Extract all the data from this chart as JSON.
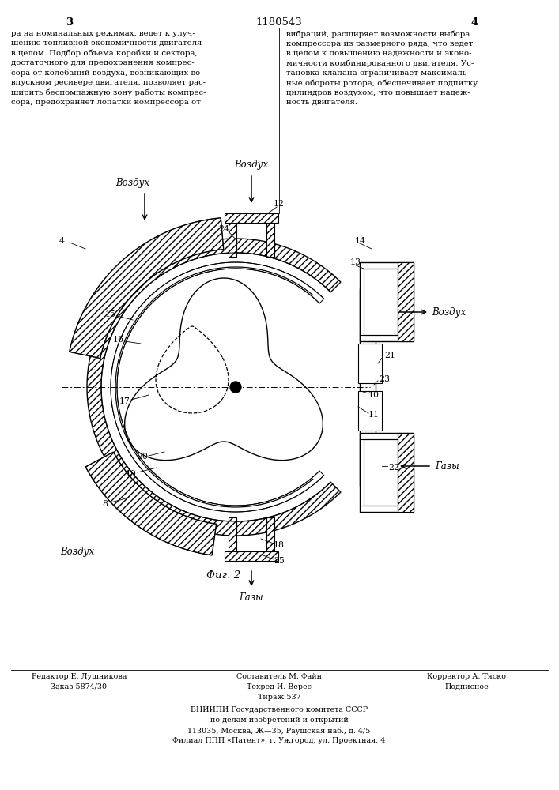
{
  "title": "1180543",
  "page_left": "3",
  "page_right": "4",
  "fig_label": "Фиг. 2",
  "bg_color": "#ffffff",
  "line_color": "#000000",
  "footer_editor": "Редактор Е. Лушникова",
  "footer_order": "Заказ 5874/30",
  "footer_composer": "Составитель М. Файн",
  "footer_tech": "Техред И. Верес",
  "footer_circ": "Тираж 537",
  "footer_corr": "Корректор А. Тяско",
  "footer_sign": "Подписное",
  "footer_vniiipi": "ВНИИПИ Государственного комитета СССР",
  "footer_affairs": "по делам изобретений и открытий",
  "footer_address": "113035, Москва, Ж—35, Раушская наб., д. 4/5",
  "footer_branch": "Филиал ППП «Патент», г. Ужгород, ул. Проектная, 4"
}
